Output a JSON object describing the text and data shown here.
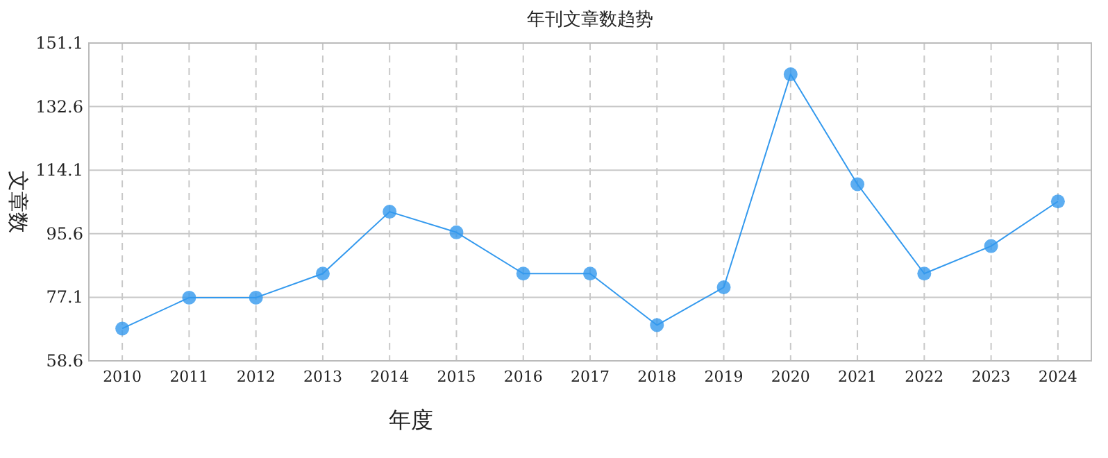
{
  "chart_data": {
    "type": "line",
    "title": "年刊文章数趋势",
    "xlabel": "年度",
    "ylabel": "文章数",
    "categories": [
      "2010",
      "2011",
      "2012",
      "2013",
      "2014",
      "2015",
      "2016",
      "2017",
      "2018",
      "2019",
      "2020",
      "2021",
      "2022",
      "2023",
      "2024"
    ],
    "series": [
      {
        "color": "#3399ee",
        "values": [
          68,
          77,
          77,
          84,
          102,
          96,
          84,
          84,
          69,
          80,
          142,
          110,
          84,
          92,
          105
        ]
      }
    ],
    "ylim": [
      58.6,
      151.1
    ],
    "yticks": [
      58.6,
      77.1,
      95.6,
      114.1,
      132.6,
      151.1
    ],
    "grid": true,
    "marker": "circle",
    "line_style": "solid"
  }
}
